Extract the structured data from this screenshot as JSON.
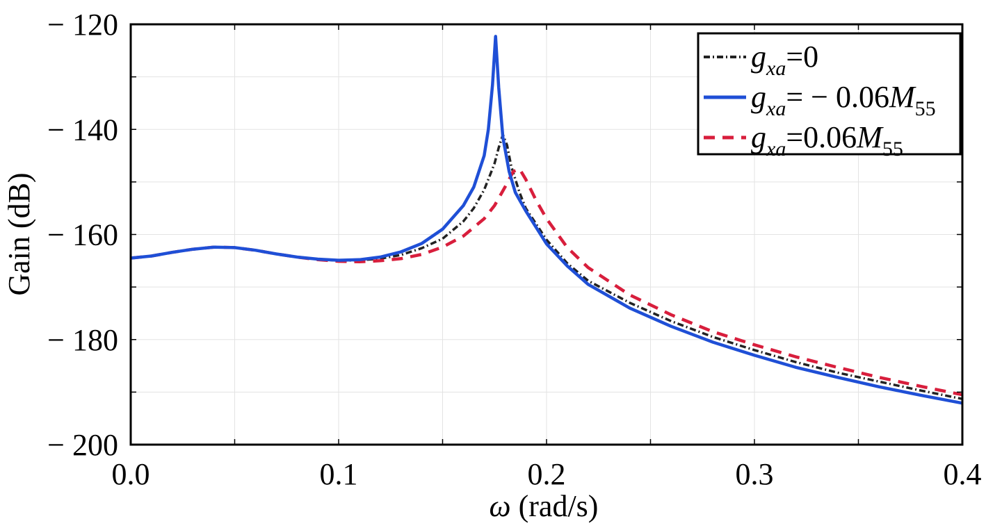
{
  "chart_data": {
    "type": "line",
    "title": "",
    "xlabel": "ω (rad/s)",
    "xlabel_symbol": "ω",
    "xlabel_unit": " (rad/s)",
    "ylabel": "Gain (dB)",
    "xlim": [
      0.0,
      0.4
    ],
    "ylim": [
      -200,
      -120
    ],
    "x_ticks": [
      0.0,
      0.1,
      0.2,
      0.3,
      0.4
    ],
    "x_tick_labels": [
      "0.0",
      "0.1",
      "0.2",
      "0.3",
      "0.4"
    ],
    "y_ticks": [
      -120,
      -140,
      -160,
      -180,
      -200
    ],
    "y_tick_labels": [
      "120",
      "140",
      "160",
      "180",
      "200"
    ],
    "y_tick_prefix": "−",
    "grid": true,
    "legend_position": "top-right",
    "series": [
      {
        "name": "g_xa=0",
        "legend": {
          "var": "g",
          "sub": "xa",
          "eq": "=0",
          "sym": "",
          "symsub": ""
        },
        "color": "#222222",
        "dash": "dashdot",
        "points": [
          [
            0.0,
            -164.5
          ],
          [
            0.01,
            -164.1
          ],
          [
            0.02,
            -163.4
          ],
          [
            0.03,
            -162.8
          ],
          [
            0.04,
            -162.4
          ],
          [
            0.05,
            -162.5
          ],
          [
            0.06,
            -163.0
          ],
          [
            0.07,
            -163.7
          ],
          [
            0.08,
            -164.3
          ],
          [
            0.09,
            -164.7
          ],
          [
            0.1,
            -165.0
          ],
          [
            0.11,
            -164.9
          ],
          [
            0.12,
            -164.6
          ],
          [
            0.13,
            -163.9
          ],
          [
            0.14,
            -162.6
          ],
          [
            0.15,
            -160.8
          ],
          [
            0.16,
            -157.5
          ],
          [
            0.165,
            -155.0
          ],
          [
            0.17,
            -151.5
          ],
          [
            0.173,
            -148.5
          ],
          [
            0.175,
            -146.5
          ],
          [
            0.177,
            -143.5
          ],
          [
            0.179,
            -141.0
          ],
          [
            0.181,
            -143.0
          ],
          [
            0.183,
            -147.0
          ],
          [
            0.187,
            -152.0
          ],
          [
            0.19,
            -155.0
          ],
          [
            0.2,
            -161.0
          ],
          [
            0.21,
            -165.5
          ],
          [
            0.22,
            -168.8
          ],
          [
            0.24,
            -173.0
          ],
          [
            0.26,
            -176.5
          ],
          [
            0.28,
            -179.5
          ],
          [
            0.3,
            -182.0
          ],
          [
            0.32,
            -184.3
          ],
          [
            0.34,
            -186.3
          ],
          [
            0.36,
            -188.0
          ],
          [
            0.38,
            -189.7
          ],
          [
            0.4,
            -191.3
          ]
        ]
      },
      {
        "name": "g_xa=−0.06M_55",
        "legend": {
          "var": "g",
          "sub": "xa",
          "eq": "= − 0.06",
          "sym": "M",
          "symsub": "55"
        },
        "color": "#1f4fd6",
        "dash": "solid",
        "points": [
          [
            0.0,
            -164.5
          ],
          [
            0.01,
            -164.1
          ],
          [
            0.02,
            -163.4
          ],
          [
            0.03,
            -162.8
          ],
          [
            0.04,
            -162.4
          ],
          [
            0.05,
            -162.5
          ],
          [
            0.06,
            -163.0
          ],
          [
            0.07,
            -163.7
          ],
          [
            0.08,
            -164.3
          ],
          [
            0.09,
            -164.7
          ],
          [
            0.1,
            -164.9
          ],
          [
            0.11,
            -164.8
          ],
          [
            0.12,
            -164.3
          ],
          [
            0.13,
            -163.3
          ],
          [
            0.14,
            -161.7
          ],
          [
            0.15,
            -159.0
          ],
          [
            0.16,
            -154.5
          ],
          [
            0.165,
            -151.0
          ],
          [
            0.17,
            -145.0
          ],
          [
            0.172,
            -140.0
          ],
          [
            0.174,
            -131.5
          ],
          [
            0.1755,
            -122.3
          ],
          [
            0.177,
            -132.0
          ],
          [
            0.179,
            -141.5
          ],
          [
            0.182,
            -148.0
          ],
          [
            0.185,
            -152.0
          ],
          [
            0.19,
            -155.5
          ],
          [
            0.2,
            -161.8
          ],
          [
            0.21,
            -166.0
          ],
          [
            0.22,
            -169.5
          ],
          [
            0.24,
            -174.0
          ],
          [
            0.26,
            -177.5
          ],
          [
            0.28,
            -180.5
          ],
          [
            0.3,
            -183.0
          ],
          [
            0.32,
            -185.3
          ],
          [
            0.34,
            -187.2
          ],
          [
            0.36,
            -189.0
          ],
          [
            0.38,
            -190.6
          ],
          [
            0.4,
            -192.1
          ]
        ]
      },
      {
        "name": "g_xa=0.06M_55",
        "legend": {
          "var": "g",
          "sub": "xa",
          "eq": "=0.06",
          "sym": "M",
          "symsub": "55"
        },
        "color": "#d81e3c",
        "dash": "dashed",
        "points": [
          [
            0.0,
            -164.5
          ],
          [
            0.01,
            -164.1
          ],
          [
            0.02,
            -163.4
          ],
          [
            0.03,
            -162.8
          ],
          [
            0.04,
            -162.4
          ],
          [
            0.05,
            -162.5
          ],
          [
            0.06,
            -163.0
          ],
          [
            0.07,
            -163.7
          ],
          [
            0.08,
            -164.3
          ],
          [
            0.09,
            -164.8
          ],
          [
            0.1,
            -165.1
          ],
          [
            0.11,
            -165.2
          ],
          [
            0.12,
            -165.0
          ],
          [
            0.13,
            -164.6
          ],
          [
            0.14,
            -163.8
          ],
          [
            0.15,
            -162.4
          ],
          [
            0.16,
            -160.3
          ],
          [
            0.17,
            -157.0
          ],
          [
            0.175,
            -154.5
          ],
          [
            0.18,
            -151.0
          ],
          [
            0.184,
            -148.0
          ],
          [
            0.187,
            -147.5
          ],
          [
            0.19,
            -149.5
          ],
          [
            0.195,
            -153.5
          ],
          [
            0.2,
            -157.0
          ],
          [
            0.21,
            -162.5
          ],
          [
            0.22,
            -166.3
          ],
          [
            0.24,
            -171.5
          ],
          [
            0.26,
            -175.3
          ],
          [
            0.28,
            -178.5
          ],
          [
            0.3,
            -181.0
          ],
          [
            0.32,
            -183.3
          ],
          [
            0.34,
            -185.3
          ],
          [
            0.36,
            -187.2
          ],
          [
            0.38,
            -188.9
          ],
          [
            0.4,
            -190.5
          ]
        ]
      }
    ]
  }
}
